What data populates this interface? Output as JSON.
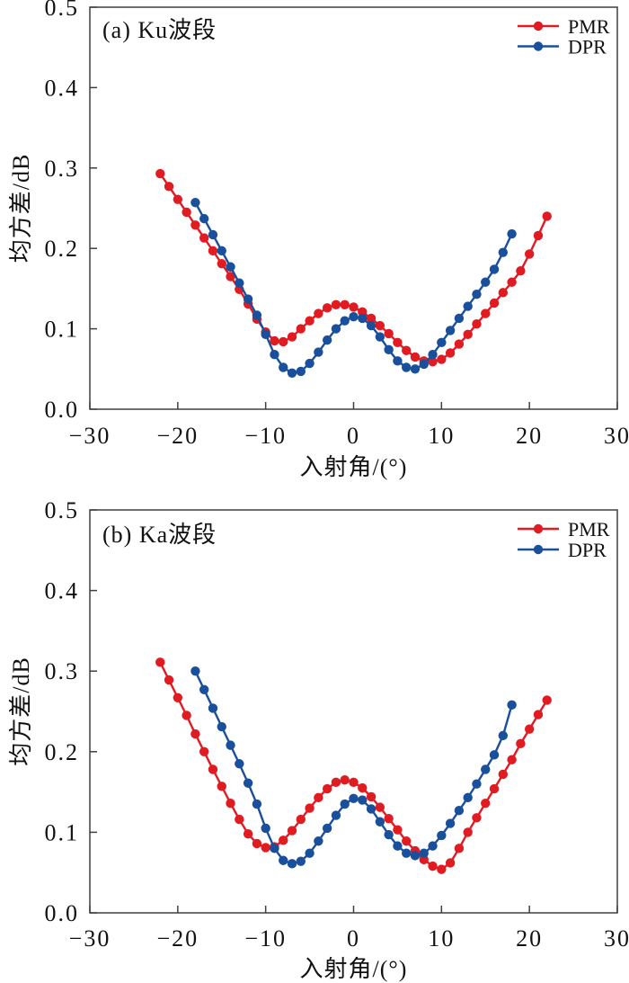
{
  "figure_title": "",
  "colors": {
    "pmr_red": "#e11b22",
    "dpr_blue": "#1a4f9c",
    "frame": "#3f3f3f",
    "text": "#111111",
    "background": "#ffffff"
  },
  "chart_data": [
    {
      "type": "line",
      "panel_label": "(a) Ku波段",
      "xlabel": "入射角/(°)",
      "ylabel": "均方差/dB",
      "xlim": [
        -30,
        30
      ],
      "ylim": [
        0,
        0.5
      ],
      "grid": false,
      "xtick_values": [
        -30,
        -20,
        -10,
        0,
        10,
        20,
        30
      ],
      "xtick_labels": [
        "−30",
        "−20",
        "−10",
        "0",
        "10",
        "20",
        "30"
      ],
      "ytick_values": [
        0,
        0.1,
        0.2,
        0.3,
        0.4,
        0.5
      ],
      "ytick_labels": [
        "0.0",
        "0.1",
        "0.2",
        "0.3",
        "0.4",
        "0.5"
      ],
      "legend": {
        "position": "top-right",
        "entries": [
          "PMR",
          "DPR"
        ]
      },
      "series": [
        {
          "name": "PMR",
          "color": "#e11b22",
          "marker": "circle",
          "x": [
            -22,
            -21,
            -20,
            -19,
            -18,
            -17,
            -16,
            -15,
            -14,
            -13,
            -12,
            -11,
            -10,
            -9,
            -8,
            -7,
            -6,
            -5,
            -4,
            -3,
            -2,
            -1,
            0,
            1,
            2,
            3,
            4,
            5,
            6,
            7,
            8,
            9,
            10,
            11,
            12,
            13,
            14,
            15,
            16,
            17,
            18,
            19,
            20,
            21,
            22
          ],
          "y": [
            0.293,
            0.277,
            0.261,
            0.245,
            0.229,
            0.213,
            0.197,
            0.181,
            0.165,
            0.149,
            0.131,
            0.112,
            0.096,
            0.085,
            0.084,
            0.09,
            0.1,
            0.11,
            0.119,
            0.126,
            0.13,
            0.13,
            0.127,
            0.121,
            0.113,
            0.104,
            0.094,
            0.083,
            0.073,
            0.065,
            0.06,
            0.059,
            0.062,
            0.07,
            0.081,
            0.093,
            0.106,
            0.119,
            0.132,
            0.145,
            0.158,
            0.172,
            0.193,
            0.216,
            0.24
          ]
        },
        {
          "name": "DPR",
          "color": "#1a4f9c",
          "marker": "circle",
          "x": [
            -18,
            -17,
            -16,
            -15,
            -14,
            -13,
            -12,
            -11,
            -10,
            -9,
            -8,
            -7,
            -6,
            -5,
            -4,
            -3,
            -2,
            -1,
            0,
            1,
            2,
            3,
            4,
            5,
            6,
            7,
            8,
            9,
            10,
            11,
            12,
            13,
            14,
            15,
            16,
            17,
            18
          ],
          "y": [
            0.257,
            0.237,
            0.217,
            0.197,
            0.177,
            0.157,
            0.137,
            0.117,
            0.093,
            0.068,
            0.052,
            0.045,
            0.047,
            0.057,
            0.071,
            0.086,
            0.1,
            0.11,
            0.115,
            0.113,
            0.104,
            0.09,
            0.074,
            0.06,
            0.052,
            0.05,
            0.056,
            0.068,
            0.083,
            0.098,
            0.113,
            0.128,
            0.143,
            0.158,
            0.174,
            0.195,
            0.218
          ]
        }
      ]
    },
    {
      "type": "line",
      "panel_label": "(b) Ka波段",
      "xlabel": "入射角/(°)",
      "ylabel": "均方差/dB",
      "xlim": [
        -30,
        30
      ],
      "ylim": [
        0,
        0.5
      ],
      "grid": false,
      "xtick_values": [
        -30,
        -20,
        -10,
        0,
        10,
        20,
        30
      ],
      "xtick_labels": [
        "−30",
        "−20",
        "−10",
        "0",
        "10",
        "20",
        "30"
      ],
      "ytick_values": [
        0,
        0.1,
        0.2,
        0.3,
        0.4,
        0.5
      ],
      "ytick_labels": [
        "0.0",
        "0.1",
        "0.2",
        "0.3",
        "0.4",
        "0.5"
      ],
      "legend": {
        "position": "top-right",
        "entries": [
          "PMR",
          "DPR"
        ]
      },
      "series": [
        {
          "name": "PMR",
          "color": "#e11b22",
          "marker": "circle",
          "x": [
            -22,
            -21,
            -20,
            -19,
            -18,
            -17,
            -16,
            -15,
            -14,
            -13,
            -12,
            -11,
            -10,
            -9,
            -8,
            -7,
            -6,
            -5,
            -4,
            -3,
            -2,
            -1,
            0,
            1,
            2,
            3,
            4,
            5,
            6,
            7,
            8,
            9,
            10,
            11,
            12,
            13,
            14,
            15,
            16,
            17,
            18,
            19,
            20,
            21,
            22
          ],
          "y": [
            0.311,
            0.289,
            0.267,
            0.245,
            0.222,
            0.2,
            0.178,
            0.157,
            0.136,
            0.116,
            0.098,
            0.086,
            0.081,
            0.082,
            0.09,
            0.102,
            0.116,
            0.13,
            0.143,
            0.154,
            0.162,
            0.165,
            0.162,
            0.155,
            0.144,
            0.131,
            0.117,
            0.103,
            0.089,
            0.077,
            0.066,
            0.058,
            0.054,
            0.062,
            0.08,
            0.1,
            0.118,
            0.136,
            0.154,
            0.172,
            0.19,
            0.21,
            0.228,
            0.246,
            0.264
          ]
        },
        {
          "name": "DPR",
          "color": "#1a4f9c",
          "marker": "circle",
          "x": [
            -18,
            -17,
            -16,
            -15,
            -14,
            -13,
            -12,
            -11,
            -10,
            -9,
            -8,
            -7,
            -6,
            -5,
            -4,
            -3,
            -2,
            -1,
            0,
            1,
            2,
            3,
            4,
            5,
            6,
            7,
            8,
            9,
            10,
            11,
            12,
            13,
            14,
            15,
            16,
            17,
            18
          ],
          "y": [
            0.3,
            0.277,
            0.254,
            0.231,
            0.208,
            0.185,
            0.161,
            0.135,
            0.105,
            0.08,
            0.065,
            0.061,
            0.064,
            0.074,
            0.089,
            0.105,
            0.121,
            0.135,
            0.142,
            0.14,
            0.129,
            0.113,
            0.097,
            0.083,
            0.074,
            0.071,
            0.074,
            0.083,
            0.096,
            0.111,
            0.127,
            0.143,
            0.16,
            0.178,
            0.196,
            0.22,
            0.258
          ]
        }
      ]
    }
  ]
}
